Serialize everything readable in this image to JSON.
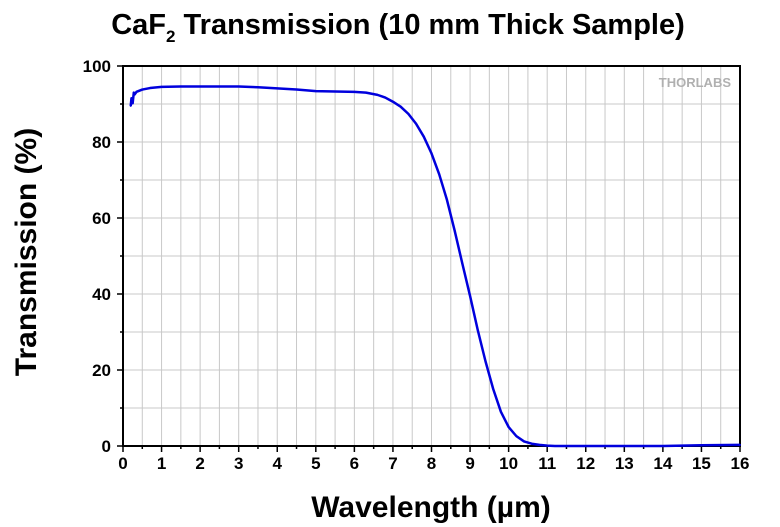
{
  "chart_data": {
    "type": "line",
    "title_main": "CaF",
    "title_sub": "2",
    "title_rest": " Transmission (10 mm Thick Sample)",
    "xlabel": "Wavelength (µm)",
    "ylabel": "Transmission (%)",
    "xlim": [
      0,
      16
    ],
    "ylim": [
      0,
      100
    ],
    "xticks": [
      "0",
      "1",
      "2",
      "3",
      "4",
      "5",
      "6",
      "7",
      "8",
      "9",
      "10",
      "11",
      "12",
      "13",
      "14",
      "15",
      "16"
    ],
    "yticks": [
      "0",
      "20",
      "40",
      "60",
      "80",
      "100"
    ],
    "grid": true,
    "logo": "THORLABS",
    "series_color": "#0000dd",
    "series": [
      {
        "x": [
          0.2,
          0.22,
          0.25,
          0.28,
          0.3,
          0.35,
          0.4,
          0.5,
          0.7,
          1.0,
          1.5,
          2.0,
          2.5,
          3.0,
          3.5,
          4.0,
          4.5,
          5.0,
          5.5,
          6.0,
          6.3,
          6.6,
          6.8,
          7.0,
          7.2,
          7.4,
          7.6,
          7.8,
          8.0,
          8.2,
          8.4,
          8.6,
          8.8,
          9.0,
          9.2,
          9.4,
          9.6,
          9.8,
          10.0,
          10.2,
          10.4,
          10.6,
          10.8,
          11.0,
          11.2,
          11.5,
          12.0,
          13.0,
          14.0,
          15.0,
          16.0
        ],
        "y": [
          89.5,
          91.5,
          90.2,
          93.0,
          92.5,
          93.2,
          93.4,
          93.8,
          94.2,
          94.5,
          94.6,
          94.6,
          94.6,
          94.6,
          94.4,
          94.1,
          93.8,
          93.4,
          93.3,
          93.2,
          93.0,
          92.4,
          91.7,
          90.6,
          89.3,
          87.4,
          84.8,
          81.4,
          77.0,
          71.5,
          64.8,
          56.7,
          48.0,
          39.5,
          30.5,
          22.3,
          15.0,
          9.0,
          5.0,
          2.6,
          1.2,
          0.6,
          0.3,
          0.1,
          0.0,
          0.0,
          0.0,
          0.0,
          0.0,
          0.2,
          0.3
        ]
      }
    ]
  }
}
